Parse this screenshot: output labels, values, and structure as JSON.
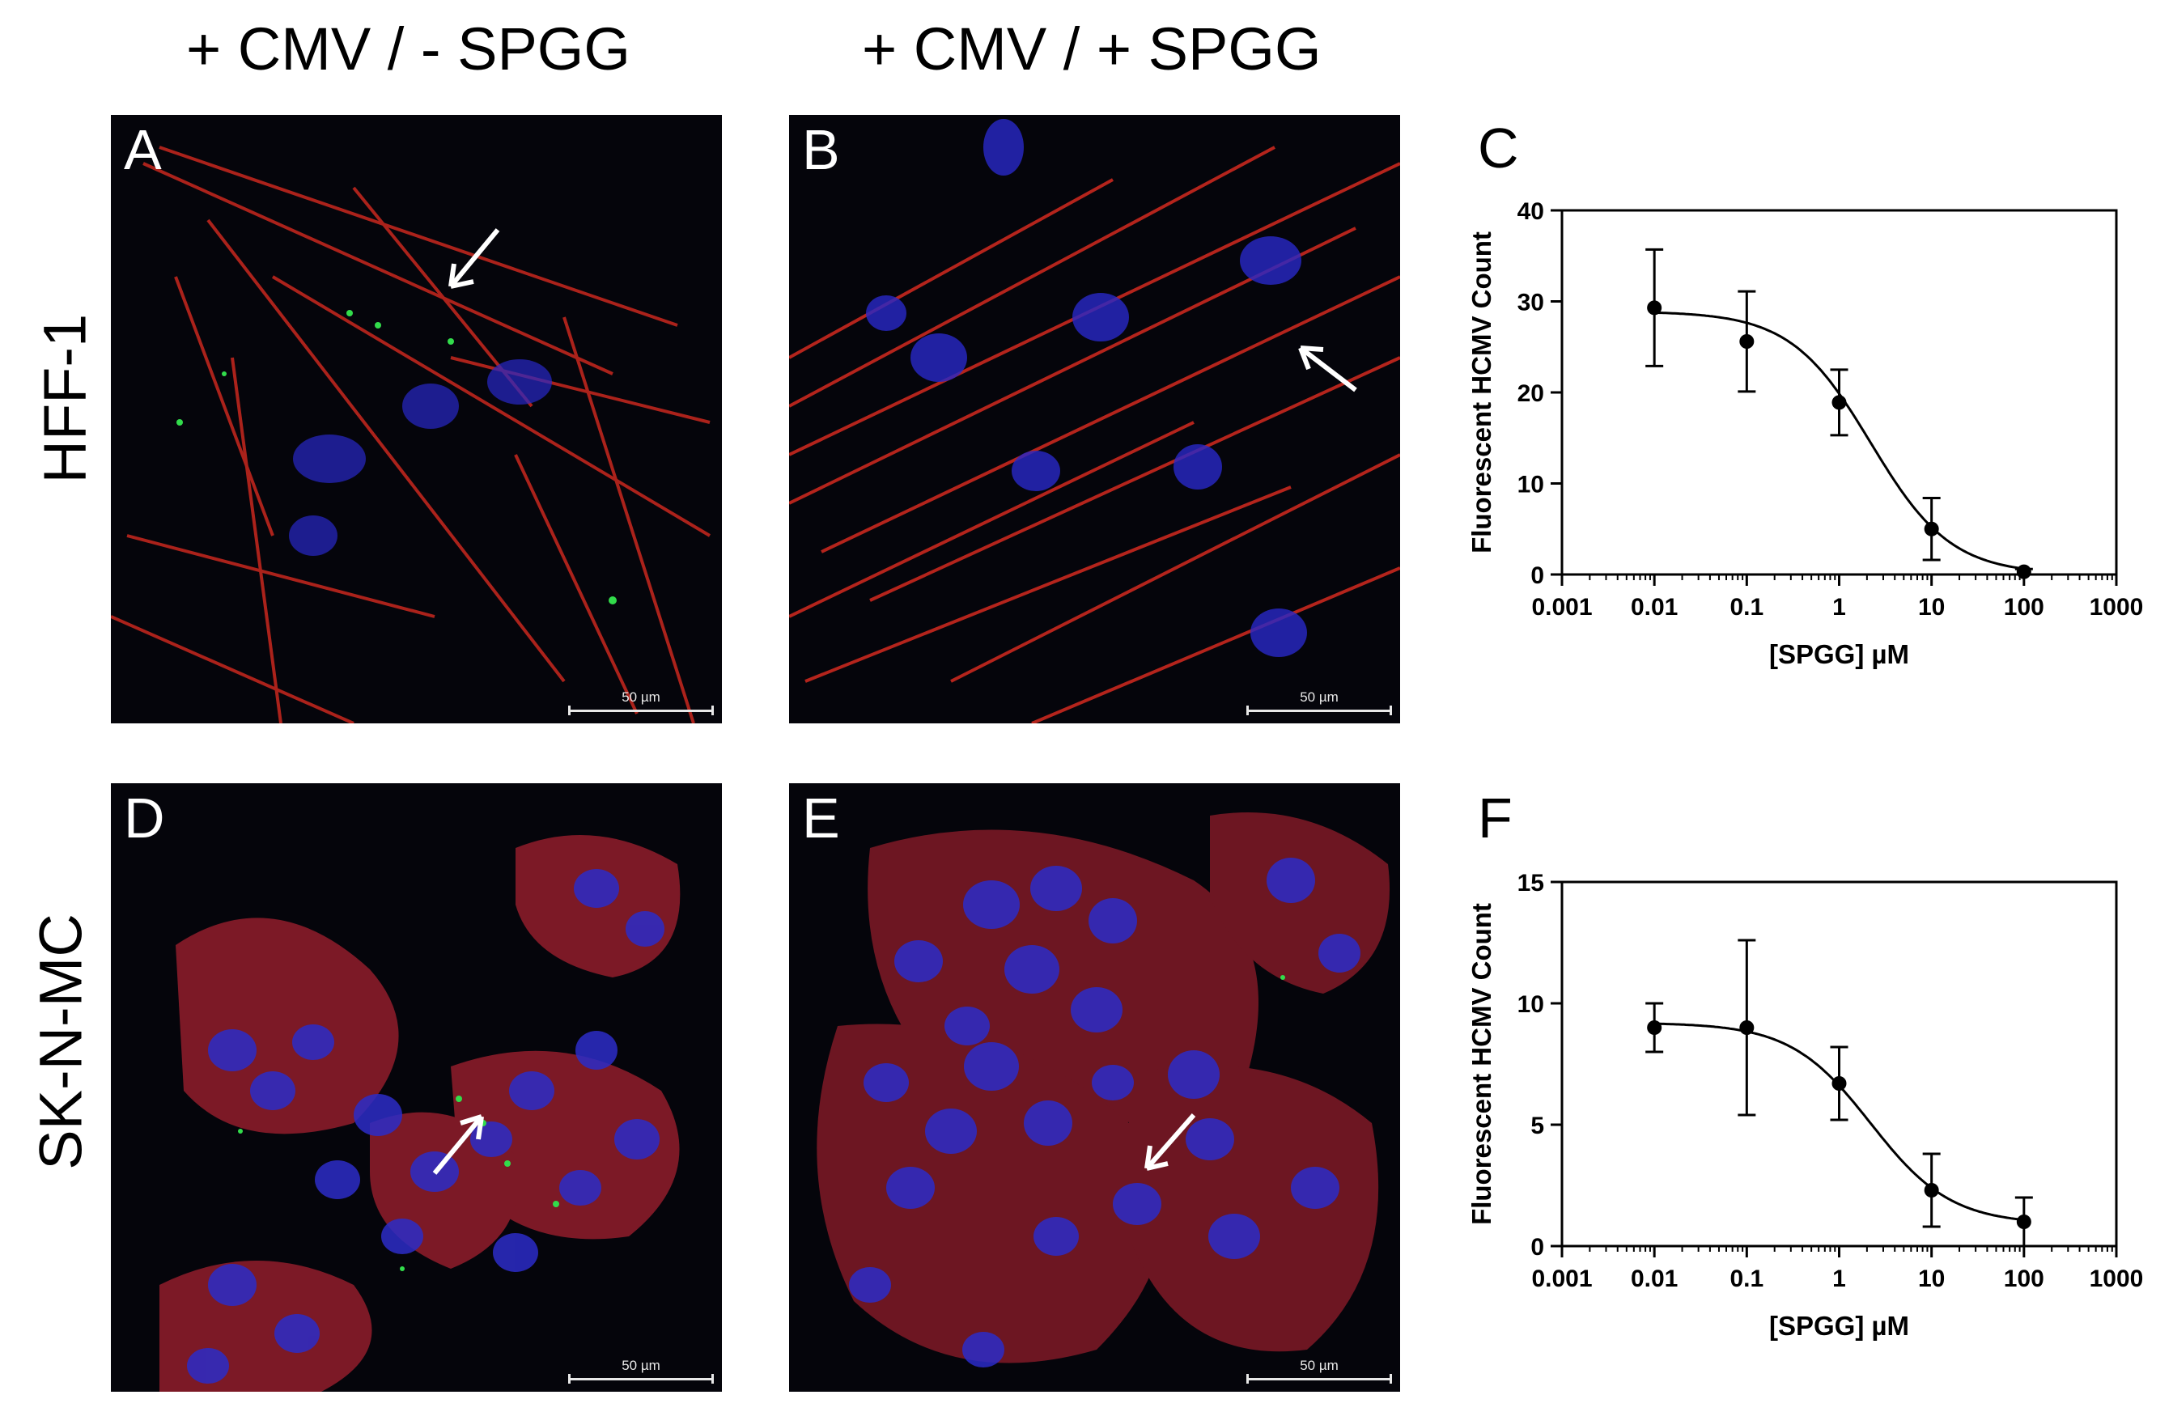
{
  "column_headers": [
    "+ CMV / - SPGG",
    "+ CMV / + SPGG"
  ],
  "row_labels": [
    "HFF-1",
    "SK-N-MC"
  ],
  "panels": {
    "A": {
      "letter": "A",
      "scale_bar": "50 µm"
    },
    "B": {
      "letter": "B",
      "scale_bar": "50 µm"
    },
    "D": {
      "letter": "D",
      "scale_bar": "50 µm"
    },
    "E": {
      "letter": "E",
      "scale_bar": "50 µm"
    }
  },
  "colors": {
    "actin": "#c8281e",
    "nucleus": "#2828c8",
    "virus": "#32dc4b",
    "arrow": "#ffffff",
    "background": "#05050b"
  },
  "chart_data": [
    {
      "panel": "C",
      "type": "scatter",
      "xscale": "log",
      "xlabel": "[SPGG] µM",
      "ylabel": "Fluorescent HCMV Count",
      "xlim": [
        0.001,
        1000
      ],
      "ylim": [
        0,
        40
      ],
      "xticks": [
        0.001,
        0.01,
        0.1,
        1,
        10,
        100,
        1000
      ],
      "xtick_labels": [
        "0.001",
        "0.01",
        "0.1",
        "1",
        "10",
        "100",
        "1000"
      ],
      "yticks": [
        0,
        10,
        20,
        30,
        40
      ],
      "x": [
        0.01,
        0.1,
        1,
        10,
        100
      ],
      "y": [
        29.3,
        25.6,
        18.9,
        5.0,
        0.3
      ],
      "error": [
        6.4,
        5.5,
        3.6,
        3.4,
        0.3
      ],
      "fit": {
        "model": "sigmoidal dose-response",
        "top": 28.9,
        "bottom": 0.0,
        "ec50": 2.2,
        "hill": 1.0
      },
      "grid": false
    },
    {
      "panel": "F",
      "type": "scatter",
      "xscale": "log",
      "xlabel": "[SPGG] µM",
      "ylabel": "Fluorescent HCMV Count",
      "xlim": [
        0.001,
        1000
      ],
      "ylim": [
        0,
        15
      ],
      "xticks": [
        0.001,
        0.01,
        0.1,
        1,
        10,
        100,
        1000
      ],
      "xtick_labels": [
        "0.001",
        "0.01",
        "0.1",
        "1",
        "10",
        "100",
        "1000"
      ],
      "yticks": [
        0,
        5,
        10,
        15
      ],
      "x": [
        0.01,
        0.1,
        1,
        10,
        100
      ],
      "y": [
        9.0,
        9.0,
        6.7,
        2.3,
        1.0
      ],
      "error": [
        1.0,
        3.6,
        1.5,
        1.5,
        1.0
      ],
      "fit": {
        "model": "sigmoidal dose-response",
        "top": 9.2,
        "bottom": 0.9,
        "ec50": 2.2,
        "hill": 1.0
      },
      "grid": false
    }
  ]
}
